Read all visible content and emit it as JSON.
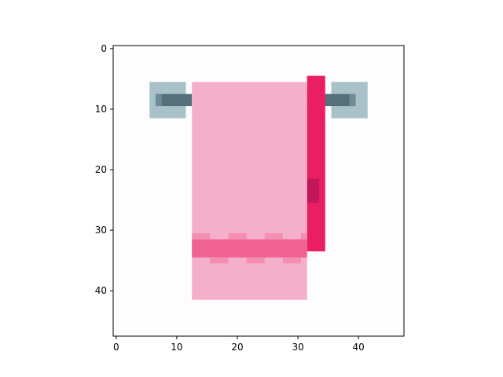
{
  "chart_data": {
    "type": "heatmap",
    "title": "",
    "xlabel": "",
    "ylabel": "",
    "image_size": [
      48,
      48
    ],
    "xlim": [
      -0.5,
      47.5
    ],
    "ylim": [
      47.5,
      -0.5
    ],
    "xticks": [
      0,
      10,
      20,
      30,
      40
    ],
    "yticks": [
      0,
      10,
      20,
      30,
      40
    ],
    "xtick_labels": [
      "0",
      "10",
      "20",
      "30",
      "40"
    ],
    "ytick_labels": [
      "0",
      "10",
      "20",
      "30",
      "40"
    ],
    "grid": false,
    "background_color": "#fdfdfd",
    "regions": [
      {
        "name": "left-bracket",
        "x": [
          6,
          11
        ],
        "y": [
          6,
          11
        ],
        "color": "#a9c2c9"
      },
      {
        "name": "right-bracket",
        "x": [
          36,
          41
        ],
        "y": [
          6,
          11
        ],
        "color": "#a9c2c9"
      },
      {
        "name": "rod-left",
        "x": [
          7,
          12
        ],
        "y": [
          8,
          9
        ],
        "color": "#55707a"
      },
      {
        "name": "rod-right",
        "x": [
          32,
          39
        ],
        "y": [
          8,
          9
        ],
        "color": "#55707a"
      },
      {
        "name": "rod-left-cap",
        "x": [
          7,
          7
        ],
        "y": [
          8,
          9
        ],
        "color": "#6f8b95"
      },
      {
        "name": "rod-right-cap",
        "x": [
          39,
          39
        ],
        "y": [
          8,
          9
        ],
        "color": "#6f8b95"
      },
      {
        "name": "back-towel",
        "x": [
          32,
          34
        ],
        "y": [
          5,
          33
        ],
        "color": "#e91e63"
      },
      {
        "name": "back-towel-shade",
        "x": [
          32,
          33
        ],
        "y": [
          22,
          25
        ],
        "color": "#c2185b"
      },
      {
        "name": "front-towel",
        "x": [
          13,
          31
        ],
        "y": [
          6,
          41
        ],
        "color": "#f4b0cb"
      },
      {
        "name": "front-towel-band",
        "x": [
          13,
          31
        ],
        "y": [
          32,
          34
        ],
        "color": "#f06292"
      }
    ]
  }
}
